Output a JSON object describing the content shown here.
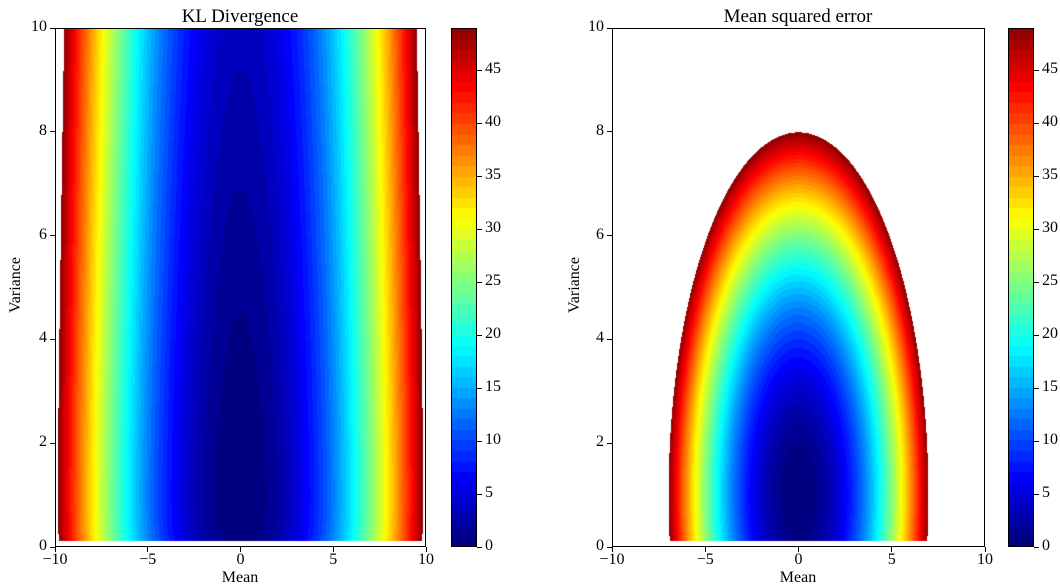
{
  "chart_data": [
    {
      "type": "heatmap",
      "title": "KL Divergence",
      "xlabel": "Mean",
      "ylabel": "Variance",
      "xlim": [
        -10,
        10
      ],
      "ylim": [
        0,
        10
      ],
      "xticks": [
        "−10",
        "−5",
        "0",
        "5",
        "10"
      ],
      "yticks": [
        "0",
        "2",
        "4",
        "6",
        "8",
        "10"
      ],
      "colorbar": {
        "range": [
          0,
          49
        ],
        "ticks": [
          "0",
          "5",
          "10",
          "15",
          "20",
          "25",
          "30",
          "35",
          "40",
          "45"
        ],
        "colormap": "jet"
      },
      "field": "kl",
      "levels_max": 49,
      "minimum_at": {
        "mean": 0,
        "variance": 1
      }
    },
    {
      "type": "heatmap",
      "title": "Mean squared error",
      "xlabel": "Mean",
      "ylabel": "Variance",
      "xlim": [
        -10,
        10
      ],
      "ylim": [
        0,
        10
      ],
      "xticks": [
        "−10",
        "−5",
        "0",
        "5",
        "10"
      ],
      "yticks": [
        "0",
        "2",
        "4",
        "6",
        "8",
        "10"
      ],
      "colorbar": {
        "range": [
          0,
          49
        ],
        "ticks": [
          "0",
          "5",
          "10",
          "15",
          "20",
          "25",
          "30",
          "35",
          "40",
          "45"
        ],
        "colormap": "jet"
      },
      "field": "mse",
      "levels_max": 49,
      "minimum_at": {
        "mean": 0,
        "variance": 1
      }
    }
  ]
}
